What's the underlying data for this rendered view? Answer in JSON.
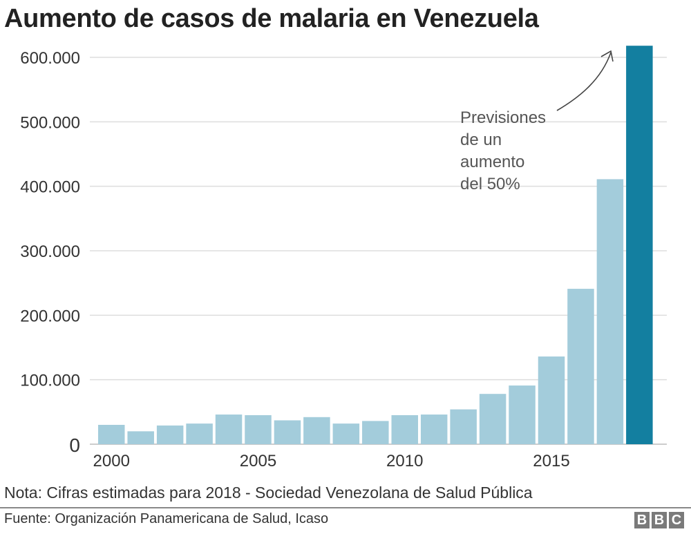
{
  "title": "Aumento de casos de malaria en Venezuela",
  "note": "Nota: Cifras estimadas para 2018 - Sociedad Venezolana de Salud Pública",
  "source": "Fuente: Organización Panamericana de Salud, Icaso",
  "logo": [
    "B",
    "B",
    "C"
  ],
  "colors": {
    "bar": "#a3ccdb",
    "highlight": "#137fa0",
    "grid": "#dddddd",
    "axis": "#cccccc",
    "logo": "#7a7a7a"
  },
  "chart_data": {
    "type": "bar",
    "title": "Aumento de casos de malaria en Venezuela",
    "xlabel": "",
    "ylabel": "",
    "categories": [
      "2000",
      "2001",
      "2002",
      "2003",
      "2004",
      "2005",
      "2006",
      "2007",
      "2008",
      "2009",
      "2010",
      "2011",
      "2012",
      "2013",
      "2014",
      "2015",
      "2016",
      "2017",
      "2018"
    ],
    "values": [
      30000,
      20000,
      29000,
      32000,
      46000,
      45000,
      37000,
      42000,
      32000,
      36000,
      45000,
      46000,
      54000,
      78000,
      91000,
      136000,
      241000,
      411000,
      618000
    ],
    "highlighted": [
      "2018"
    ],
    "ylim": [
      0,
      600000
    ],
    "yticks": [
      0,
      100000,
      200000,
      300000,
      400000,
      500000,
      600000
    ],
    "ytick_labels": [
      "0",
      "100.000",
      "200.000",
      "300.000",
      "400.000",
      "500.000",
      "600.000"
    ],
    "xtick_labels": [
      "2000",
      "2005",
      "2010",
      "2015"
    ],
    "grid": true,
    "annotation": {
      "lines": [
        "Previsiones",
        "de un",
        "aumento",
        "del 50%"
      ],
      "target": "2018",
      "arrow": true
    }
  }
}
